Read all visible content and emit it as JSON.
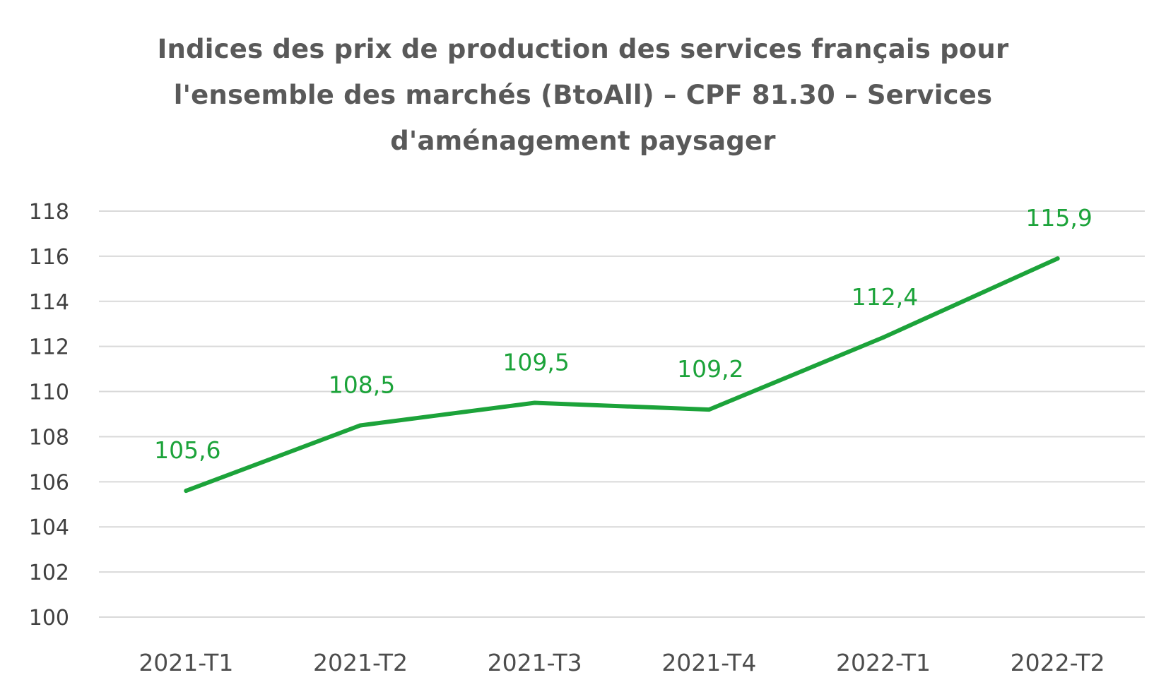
{
  "chart_data": {
    "type": "line",
    "title_lines": [
      "Indices des prix de production des services français pour",
      "l'ensemble des marchés (BtoAll) – CPF 81.30 – Services",
      "d'aménagement paysager"
    ],
    "xlabel": "",
    "ylabel": "",
    "categories": [
      "2021-T1",
      "2021-T2",
      "2021-T3",
      "2021-T4",
      "2022-T1",
      "2022-T2"
    ],
    "series": [
      {
        "values": [
          105.6,
          108.5,
          109.5,
          109.2,
          112.4,
          115.9
        ],
        "data_labels": [
          "105,6",
          "108,5",
          "109,5",
          "109,2",
          "112,4",
          "115,9"
        ],
        "color": "#1ca33a"
      }
    ],
    "ylim": [
      100,
      118
    ],
    "yticks": [
      100,
      102,
      104,
      106,
      108,
      110,
      112,
      114,
      116,
      118
    ],
    "ytick_labels": [
      "100",
      "102",
      "104",
      "106",
      "108",
      "110",
      "112",
      "114",
      "116",
      "118"
    ],
    "grid": true,
    "grid_color": "#d9d9d9",
    "legend": "none"
  }
}
